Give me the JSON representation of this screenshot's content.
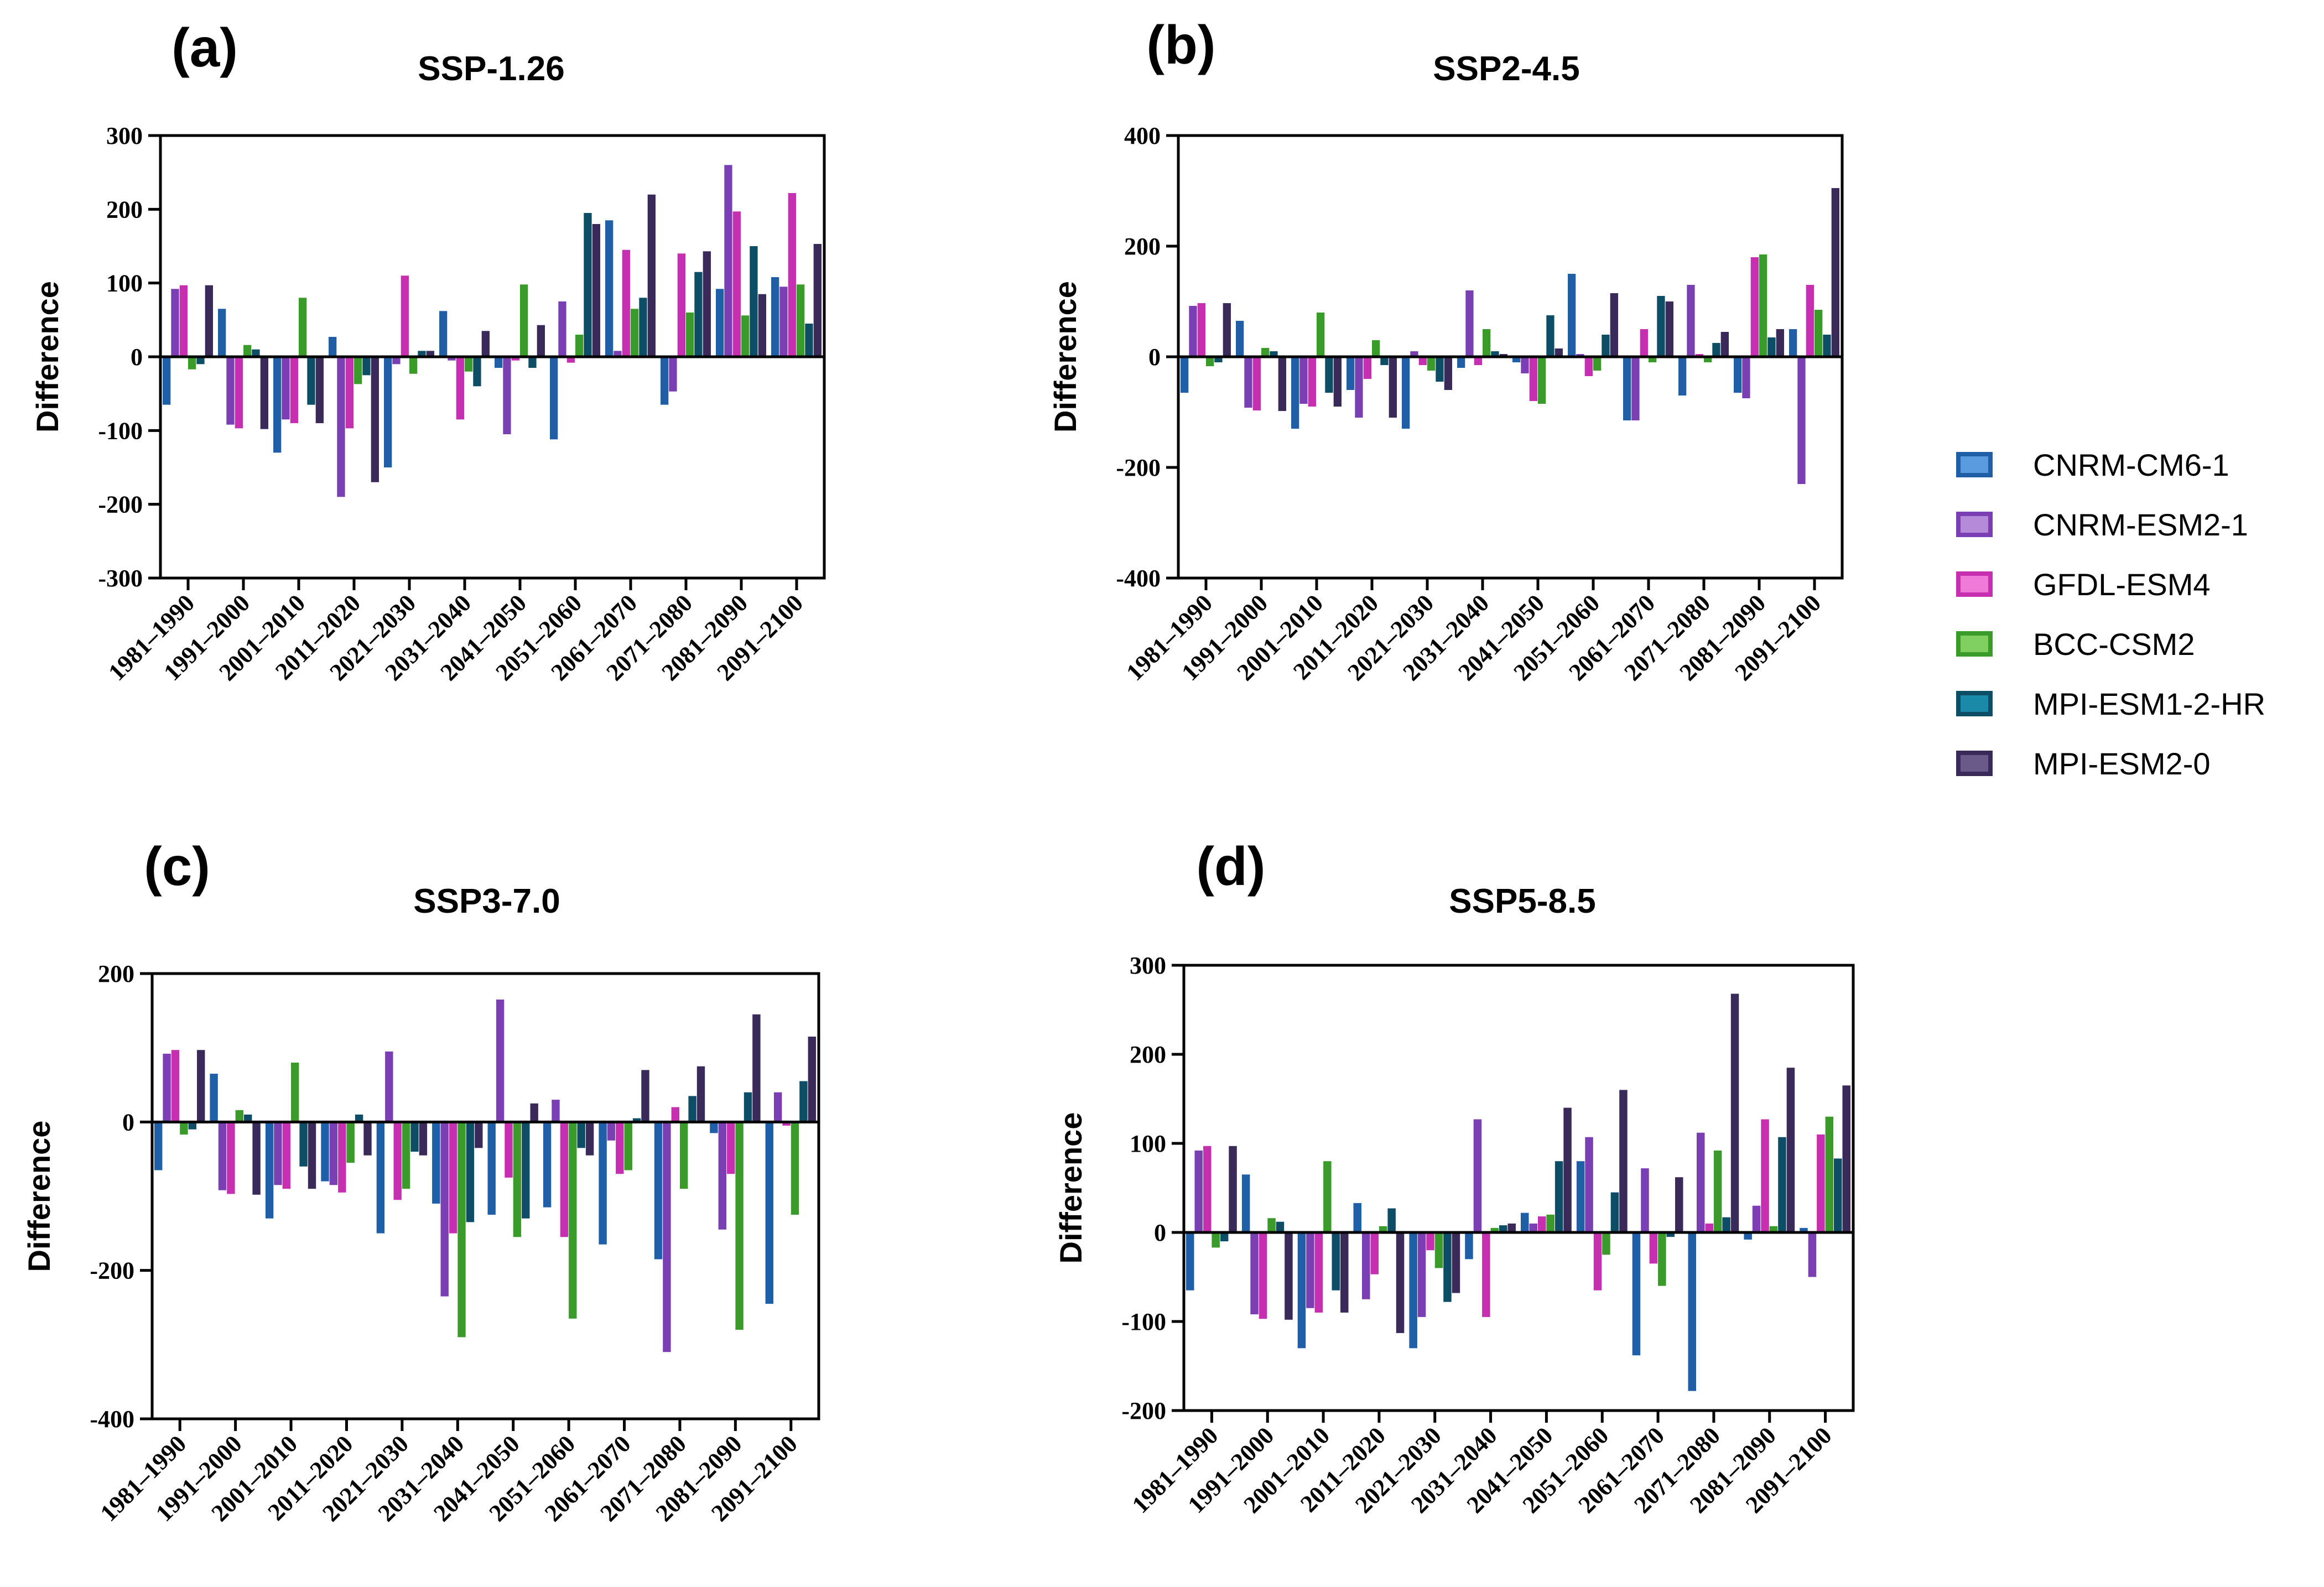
{
  "legend": {
    "models": [
      "CNRM-CM6-1",
      "CNRM-ESM2-1",
      "GFDL-ESM4",
      "BCC-CSM2",
      "MPI-ESM1-2-HR",
      "MPI-ESM2-0"
    ],
    "colors": [
      "#1f5fa8",
      "#7a3fb3",
      "#c62fb0",
      "#3a9a2a",
      "#0d4d66",
      "#3a2a5a"
    ],
    "fill_colors": [
      "#5a9be0",
      "#b58ad8",
      "#f07ad8",
      "#7fd060",
      "#1a8aa8",
      "#6a5a8a"
    ]
  },
  "chart_data": [
    {
      "type": "bar",
      "panel_label": "(a)",
      "title": "SSP-1.26",
      "ylabel": "Difference",
      "ylim": [
        -300,
        300
      ],
      "yticks": [
        300,
        200,
        100,
        0,
        -100,
        -200,
        -300
      ],
      "ytick_labels": [
        "300",
        "200",
        "100",
        "0",
        "-100",
        "-200",
        "-300"
      ],
      "categories": [
        "1981–1990",
        "1991–2000",
        "2001–2010",
        "2011–2020",
        "2021–2030",
        "2031–2040",
        "2041–2050",
        "2051–2060",
        "2061–2070",
        "2071–2080",
        "2081–2090",
        "2091–2100"
      ],
      "series": [
        {
          "name": "CNRM-CM6-1",
          "values": [
            -65,
            65,
            -130,
            27,
            -150,
            62,
            -15,
            -112,
            185,
            -65,
            92,
            108
          ]
        },
        {
          "name": "CNRM-ESM2-1",
          "values": [
            92,
            -92,
            -85,
            -190,
            -10,
            -5,
            -105,
            75,
            8,
            -47,
            260,
            95
          ]
        },
        {
          "name": "GFDL-ESM4",
          "values": [
            97,
            -97,
            -90,
            -97,
            110,
            -85,
            -5,
            -8,
            145,
            140,
            197,
            222
          ]
        },
        {
          "name": "BCC-CSM2",
          "values": [
            -17,
            16,
            80,
            -37,
            -23,
            -20,
            98,
            30,
            65,
            60,
            56,
            98
          ]
        },
        {
          "name": "MPI-ESM1-2-HR",
          "values": [
            -10,
            10,
            -65,
            -25,
            8,
            -40,
            -15,
            195,
            80,
            115,
            150,
            45
          ]
        },
        {
          "name": "MPI-ESM2-0",
          "values": [
            97,
            -98,
            -90,
            -170,
            8,
            35,
            43,
            180,
            220,
            143,
            85,
            153
          ]
        }
      ]
    },
    {
      "type": "bar",
      "panel_label": "(b)",
      "title": "SSP2-4.5",
      "ylabel": "Difference",
      "ylim": [
        -400,
        400
      ],
      "yticks": [
        400,
        200,
        0,
        -200,
        -400
      ],
      "ytick_labels": [
        "400",
        "200",
        "0",
        "-200",
        "-400"
      ],
      "categories": [
        "1981–1990",
        "1991–2000",
        "2001–2010",
        "2011–2020",
        "2021–2030",
        "2031–2040",
        "2041–2050",
        "2051–2060",
        "2061–2070",
        "2071–2080",
        "2081–2090",
        "2091–2100"
      ],
      "series": [
        {
          "name": "CNRM-CM6-1",
          "values": [
            -65,
            65,
            -130,
            -60,
            -130,
            -20,
            -10,
            150,
            -115,
            -70,
            -65,
            50
          ]
        },
        {
          "name": "CNRM-ESM2-1",
          "values": [
            92,
            -92,
            -85,
            -110,
            10,
            120,
            -30,
            5,
            -115,
            130,
            -75,
            -230
          ]
        },
        {
          "name": "GFDL-ESM4",
          "values": [
            97,
            -97,
            -90,
            -40,
            -15,
            -15,
            -80,
            -35,
            50,
            5,
            180,
            130
          ]
        },
        {
          "name": "BCC-CSM2",
          "values": [
            -17,
            16,
            80,
            30,
            -25,
            50,
            -85,
            -25,
            -10,
            -10,
            185,
            85
          ]
        },
        {
          "name": "MPI-ESM1-2-HR",
          "values": [
            -10,
            10,
            -65,
            -15,
            -45,
            10,
            75,
            40,
            110,
            25,
            35,
            40
          ]
        },
        {
          "name": "MPI-ESM2-0",
          "values": [
            97,
            -98,
            -90,
            -110,
            -60,
            5,
            15,
            115,
            100,
            45,
            50,
            305
          ]
        }
      ]
    },
    {
      "type": "bar",
      "panel_label": "(c)",
      "title": "SSP3-7.0",
      "ylabel": "Difference",
      "ylim": [
        -400,
        200
      ],
      "yticks": [
        200,
        0,
        -200,
        -400
      ],
      "ytick_labels": [
        "200",
        "0",
        "-200",
        "-400"
      ],
      "categories": [
        "1981–1990",
        "1991–2000",
        "2001–2010",
        "2011–2020",
        "2021–2030",
        "2031–2040",
        "2041–2050",
        "2051–2060",
        "2061–2070",
        "2071–2080",
        "2081–2090",
        "2091–2100"
      ],
      "series": [
        {
          "name": "CNRM-CM6-1",
          "values": [
            -65,
            65,
            -130,
            -80,
            -150,
            -110,
            -125,
            -115,
            -165,
            -185,
            -15,
            -245
          ]
        },
        {
          "name": "CNRM-ESM2-1",
          "values": [
            92,
            -92,
            -85,
            -85,
            95,
            -235,
            165,
            30,
            -25,
            -310,
            -145,
            40
          ]
        },
        {
          "name": "GFDL-ESM4",
          "values": [
            97,
            -97,
            -90,
            -95,
            -105,
            -150,
            -75,
            -155,
            -70,
            20,
            -70,
            -5
          ]
        },
        {
          "name": "BCC-CSM2",
          "values": [
            -17,
            16,
            80,
            -55,
            -90,
            -290,
            -155,
            -265,
            -65,
            -90,
            -280,
            -125
          ]
        },
        {
          "name": "MPI-ESM1-2-HR",
          "values": [
            -10,
            10,
            -60,
            10,
            -40,
            -135,
            -130,
            -35,
            5,
            35,
            40,
            55
          ]
        },
        {
          "name": "MPI-ESM2-0",
          "values": [
            97,
            -98,
            -90,
            -45,
            -45,
            -35,
            25,
            -45,
            70,
            75,
            145,
            115
          ]
        }
      ]
    },
    {
      "type": "bar",
      "panel_label": "(d)",
      "title": "SSP5-8.5",
      "ylabel": "Difference",
      "ylim": [
        -200,
        300
      ],
      "yticks": [
        300,
        200,
        100,
        0,
        -100,
        -200
      ],
      "ytick_labels": [
        "300",
        "200",
        "100",
        "0",
        "-100",
        "-200"
      ],
      "categories": [
        "1981–1990",
        "1991–2000",
        "2001–2010",
        "2011–2020",
        "2021–2030",
        "2031–2040",
        "2041–2050",
        "2051–2060",
        "2061–2070",
        "2071–2080",
        "2081–2090",
        "2091–2100"
      ],
      "series": [
        {
          "name": "CNRM-CM6-1",
          "values": [
            -65,
            65,
            -130,
            33,
            -130,
            -30,
            22,
            80,
            -138,
            -178,
            -8,
            5
          ]
        },
        {
          "name": "CNRM-ESM2-1",
          "values": [
            92,
            -92,
            -85,
            -75,
            -95,
            127,
            10,
            107,
            72,
            112,
            30,
            -50
          ]
        },
        {
          "name": "GFDL-ESM4",
          "values": [
            97,
            -97,
            -90,
            -47,
            -20,
            -95,
            18,
            -65,
            -35,
            10,
            127,
            110
          ]
        },
        {
          "name": "BCC-CSM2",
          "values": [
            -17,
            16,
            80,
            7,
            -40,
            5,
            20,
            -25,
            -60,
            92,
            7,
            130
          ]
        },
        {
          "name": "MPI-ESM1-2-HR",
          "values": [
            -10,
            12,
            -65,
            27,
            -78,
            8,
            80,
            45,
            -5,
            17,
            107,
            83
          ]
        },
        {
          "name": "MPI-ESM2-0",
          "values": [
            97,
            -98,
            -90,
            -113,
            -68,
            10,
            140,
            160,
            62,
            268,
            185,
            165
          ]
        }
      ]
    }
  ]
}
